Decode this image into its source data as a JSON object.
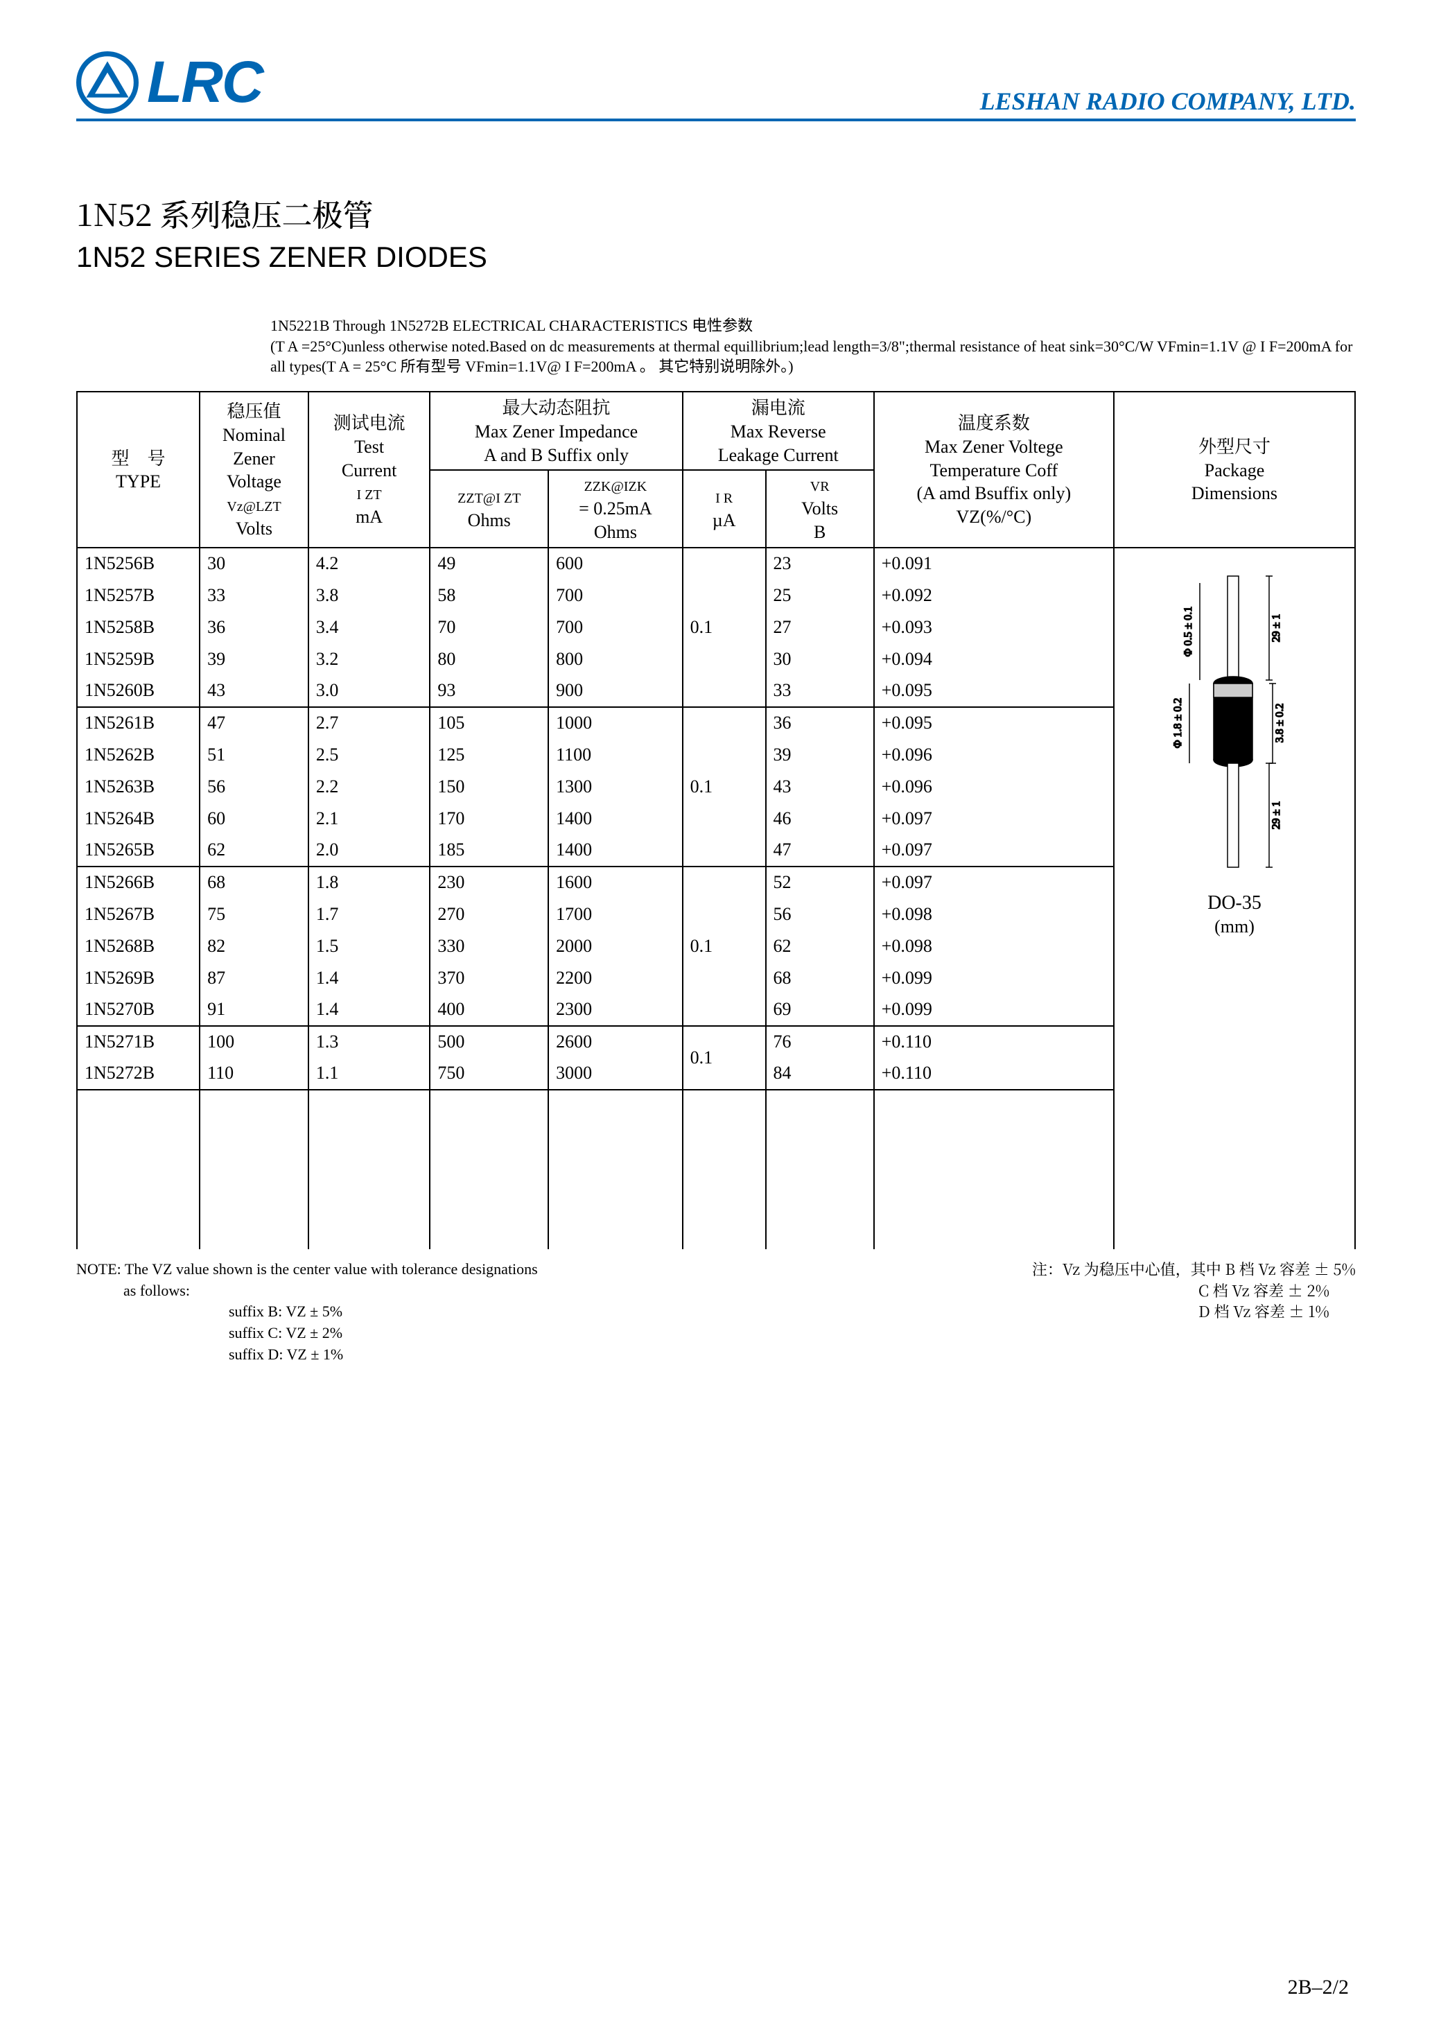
{
  "header": {
    "logo_text": "LRC",
    "company": "LESHAN RADIO COMPANY, LTD."
  },
  "titles": {
    "cn": "1N52 系列稳压二极管",
    "en": "1N52 SERIES ZENER DIODES"
  },
  "intro": {
    "line1": "1N5221B Through 1N5272B ELECTRICAL CHARACTERISTICS 电性参数",
    "line2": "(T A =25°C)unless otherwise noted.Based on dc measurements at thermal equillibrium;lead length=3/8\";thermal resistance of heat sink=30°C/W  VFmin=1.1V @ I F=200mA for all types(T A = 25°C 所有型号 VFmin=1.1V@ I F=200mA 。 其它特别说明除外。)"
  },
  "table_headers": {
    "type_cn": "型　号",
    "type_en": "TYPE",
    "vz_cn": "稳压值",
    "vz_en1": "Nominal",
    "vz_en2": "Zener",
    "vz_en3": "Voltage",
    "vz_sym": "Vz@LZT",
    "vz_unit": "Volts",
    "izt_cn": "测试电流",
    "izt_en1": "Test",
    "izt_en2": "Current",
    "izt_sym": "I ZT",
    "izt_unit": "mA",
    "imp_cn": "最大动态阻抗",
    "imp_en1": "Max Zener Impedance",
    "imp_en2": "A and B Suffix only",
    "zzt_sym": "ZZT@I ZT",
    "zzt_unit": "Ohms",
    "zzk_sym": "ZZK@IZK",
    "zzk_eq": "= 0.25mA",
    "zzk_unit": "Ohms",
    "leak_cn": "漏电流",
    "leak_en1": "Max Reverse",
    "leak_en2": "Leakage Current",
    "ir_sym": "I R",
    "ir_unit": "µA",
    "vr_sym": "VR",
    "vr_en": "Volts",
    "vr_unit": "B",
    "temp_cn": "温度系数",
    "temp_en1": "Max Zener Voltege",
    "temp_en2": "Temperature Coff",
    "temp_en3": "(A amd Bsuffix only)",
    "temp_sym": "VZ(%/°C)",
    "pkg_cn": "外型尺寸",
    "pkg_en1": "Package",
    "pkg_en2": "Dimensions"
  },
  "package": {
    "label": "DO-35",
    "unit": "(mm)",
    "dim_lead_dia": "Φ 0.5 ± 0.1",
    "dim_lead_len": "29 ± 1",
    "dim_body_dia": "Φ 1.8 ± 0.2",
    "dim_body_len": "3.8 ± 0.2",
    "dim_lead_len2": "29 ± 1"
  },
  "groups": [
    {
      "ir": "0.1",
      "rows": [
        {
          "type": "1N5256B",
          "vz": "30",
          "izt": "4.2",
          "zzt": "49",
          "zzk": "600",
          "vr": "23",
          "tc": "+0.091"
        },
        {
          "type": "1N5257B",
          "vz": "33",
          "izt": "3.8",
          "zzt": "58",
          "zzk": "700",
          "vr": "25",
          "tc": "+0.092"
        },
        {
          "type": "1N5258B",
          "vz": "36",
          "izt": "3.4",
          "zzt": "70",
          "zzk": "700",
          "vr": "27",
          "tc": "+0.093"
        },
        {
          "type": "1N5259B",
          "vz": "39",
          "izt": "3.2",
          "zzt": "80",
          "zzk": "800",
          "vr": "30",
          "tc": "+0.094"
        },
        {
          "type": "1N5260B",
          "vz": "43",
          "izt": "3.0",
          "zzt": "93",
          "zzk": "900",
          "vr": "33",
          "tc": "+0.095"
        }
      ]
    },
    {
      "ir": "0.1",
      "rows": [
        {
          "type": "1N5261B",
          "vz": "47",
          "izt": "2.7",
          "zzt": "105",
          "zzk": "1000",
          "vr": "36",
          "tc": "+0.095"
        },
        {
          "type": "1N5262B",
          "vz": "51",
          "izt": "2.5",
          "zzt": "125",
          "zzk": "1100",
          "vr": "39",
          "tc": "+0.096"
        },
        {
          "type": "1N5263B",
          "vz": "56",
          "izt": "2.2",
          "zzt": "150",
          "zzk": "1300",
          "vr": "43",
          "tc": "+0.096"
        },
        {
          "type": "1N5264B",
          "vz": "60",
          "izt": "2.1",
          "zzt": "170",
          "zzk": "1400",
          "vr": "46",
          "tc": "+0.097"
        },
        {
          "type": "1N5265B",
          "vz": "62",
          "izt": "2.0",
          "zzt": "185",
          "zzk": "1400",
          "vr": "47",
          "tc": "+0.097"
        }
      ]
    },
    {
      "ir": "0.1",
      "rows": [
        {
          "type": "1N5266B",
          "vz": "68",
          "izt": "1.8",
          "zzt": "230",
          "zzk": "1600",
          "vr": "52",
          "tc": "+0.097"
        },
        {
          "type": "1N5267B",
          "vz": "75",
          "izt": "1.7",
          "zzt": "270",
          "zzk": "1700",
          "vr": "56",
          "tc": "+0.098"
        },
        {
          "type": "1N5268B",
          "vz": "82",
          "izt": "1.5",
          "zzt": "330",
          "zzk": "2000",
          "vr": "62",
          "tc": "+0.098"
        },
        {
          "type": "1N5269B",
          "vz": "87",
          "izt": "1.4",
          "zzt": "370",
          "zzk": "2200",
          "vr": "68",
          "tc": "+0.099"
        },
        {
          "type": "1N5270B",
          "vz": "91",
          "izt": "1.4",
          "zzt": "400",
          "zzk": "2300",
          "vr": "69",
          "tc": "+0.099"
        }
      ]
    },
    {
      "ir": "0.1",
      "rows": [
        {
          "type": "1N5271B",
          "vz": "100",
          "izt": "1.3",
          "zzt": "500",
          "zzk": "2600",
          "vr": "76",
          "tc": "+0.110"
        },
        {
          "type": "1N5272B",
          "vz": "110",
          "izt": "1.1",
          "zzt": "750",
          "zzk": "3000",
          "vr": "84",
          "tc": "+0.110"
        }
      ]
    }
  ],
  "notes": {
    "left_title": "NOTE: The VZ value shown is the center value with tolerance designations",
    "left_sub": "as  follows:",
    "suffix_b": "suffix B:  VZ ± 5%",
    "suffix_c": "suffix C:  VZ ± 2%",
    "suffix_d": "suffix D:  VZ ± 1%",
    "right_title": "注：Vz 为稳压中心值，其中 B 档 Vz 容差 ± 5%",
    "right_c": "C 档 Vz 容差 ± 2%",
    "right_d": "D 档 Vz 容差 ± 1%"
  },
  "page": "2B–2/2",
  "colors": {
    "brand": "#0066b3",
    "border": "#000000",
    "text": "#000000",
    "bg": "#ffffff"
  }
}
